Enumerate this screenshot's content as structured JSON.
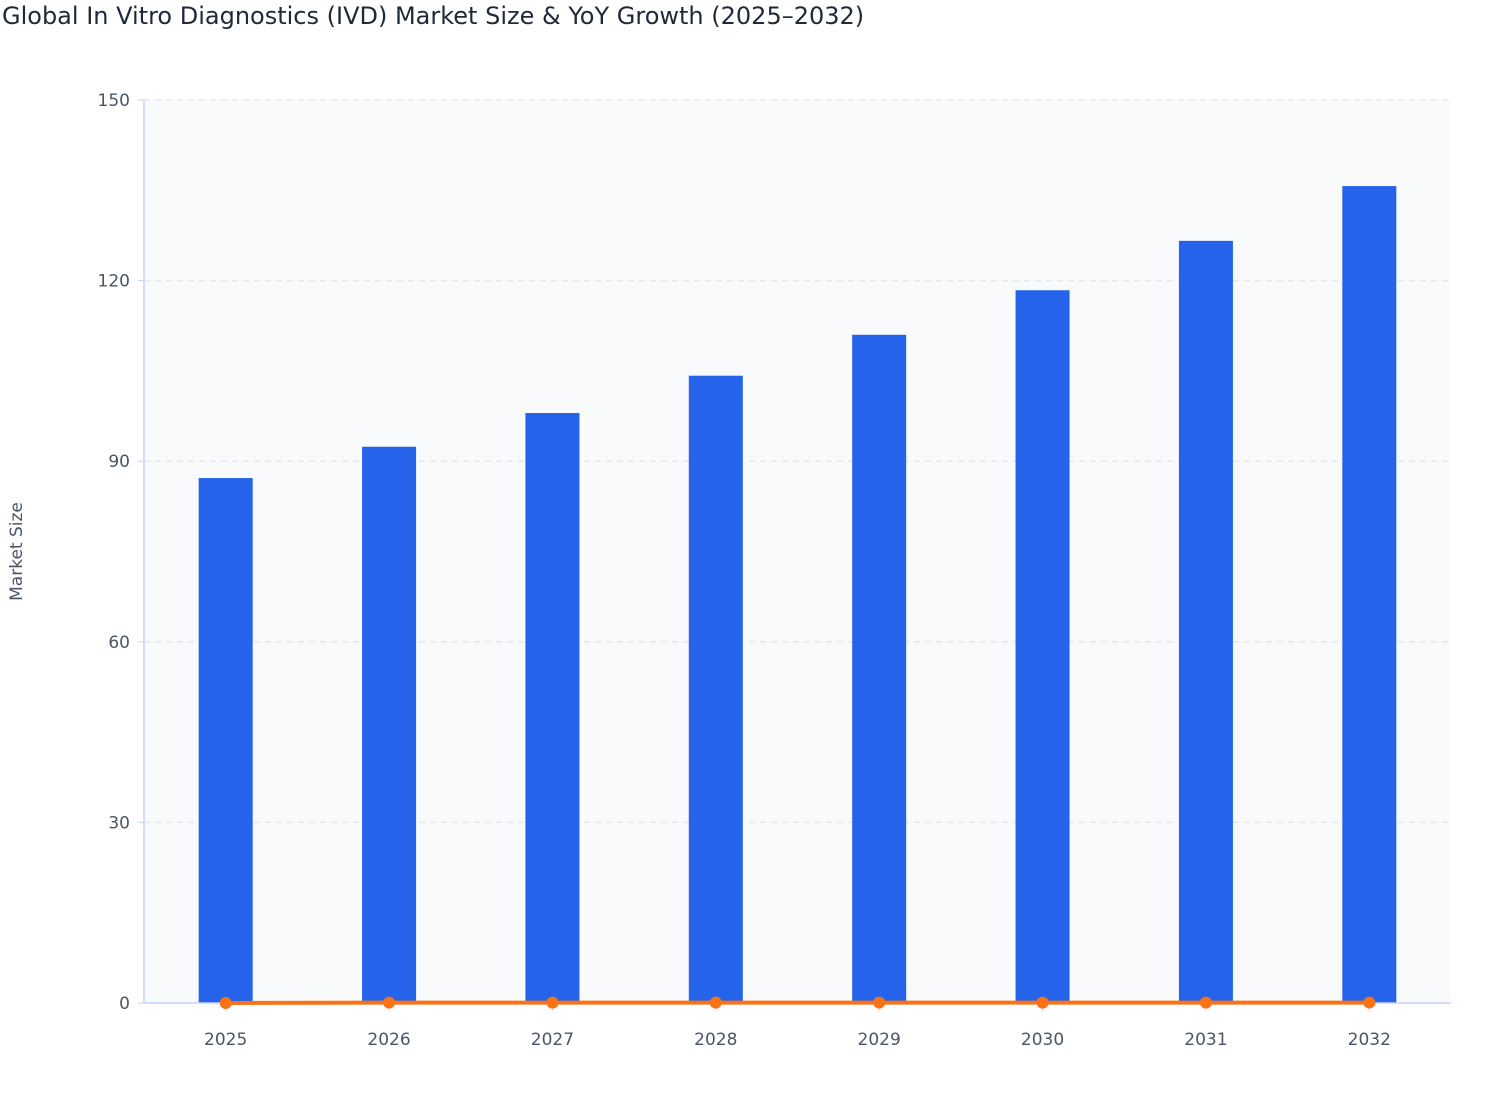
{
  "chart_data": {
    "type": "bar",
    "title": "Global In Vitro Diagnostics (IVD) Market Size & YoY Growth (2025–2032)",
    "xlabel": "",
    "ylabel": "Market Size",
    "ylim": [
      0,
      150
    ],
    "yticks": [
      "0",
      "30",
      "60",
      "90",
      "120",
      "150"
    ],
    "grid": true,
    "categories": [
      "2025",
      "2026",
      "2027",
      "2028",
      "2029",
      "2030",
      "2031",
      "2032"
    ],
    "series": [
      {
        "type": "bar",
        "color": "#2563eb",
        "values": [
          87.2,
          92.4,
          98.0,
          104.2,
          111.0,
          118.4,
          126.6,
          135.7
        ]
      },
      {
        "type": "line",
        "color": "#f97316",
        "values": [
          0,
          0.06,
          0.061,
          0.063,
          0.065,
          0.067,
          0.069,
          0.072
        ]
      }
    ],
    "colors": {
      "plot_bg": "#f8fafc",
      "grid": "#e5e7eb",
      "axis": "#c7d2fe"
    }
  }
}
